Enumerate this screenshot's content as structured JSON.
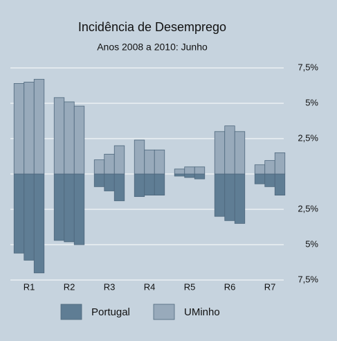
{
  "chart_data": {
    "type": "diverging-bar",
    "title": "Incidência de Desemprego",
    "subtitle": "Anos 2008 a 2010: Junho",
    "categories": [
      "R1",
      "R2",
      "R3",
      "R4",
      "R5",
      "R6",
      "R7"
    ],
    "series": [
      {
        "name": "Portugal",
        "color": "#5f7d94",
        "values": [
          [
            -5.6,
            -6.1,
            -7.0
          ],
          [
            -4.7,
            -4.8,
            -5.0
          ],
          [
            -0.9,
            -1.2,
            -1.9
          ],
          [
            -1.6,
            -1.5,
            -1.5
          ],
          [
            -0.15,
            -0.25,
            -0.35
          ],
          [
            -3.0,
            -3.3,
            -3.5
          ],
          [
            -0.7,
            -0.9,
            -1.5
          ]
        ]
      },
      {
        "name": "UMinho",
        "color": "#98aabb",
        "values": [
          [
            6.4,
            6.5,
            6.7
          ],
          [
            5.4,
            5.1,
            4.8
          ],
          [
            1.0,
            1.4,
            2.0
          ],
          [
            2.4,
            1.7,
            1.7
          ],
          [
            0.35,
            0.5,
            0.5
          ],
          [
            3.0,
            3.4,
            3.0
          ],
          [
            0.65,
            0.95,
            1.5
          ]
        ]
      }
    ],
    "ylim": [
      -7.5,
      7.5
    ],
    "yticks": [
      {
        "value": 7.5,
        "label": "7,5%"
      },
      {
        "value": 5,
        "label": "5%"
      },
      {
        "value": 2.5,
        "label": "2,5%"
      },
      {
        "value": -2.5,
        "label": "2,5%"
      },
      {
        "value": -5,
        "label": "5%"
      },
      {
        "value": -7.5,
        "label": "7,5%"
      }
    ],
    "grid": true
  }
}
